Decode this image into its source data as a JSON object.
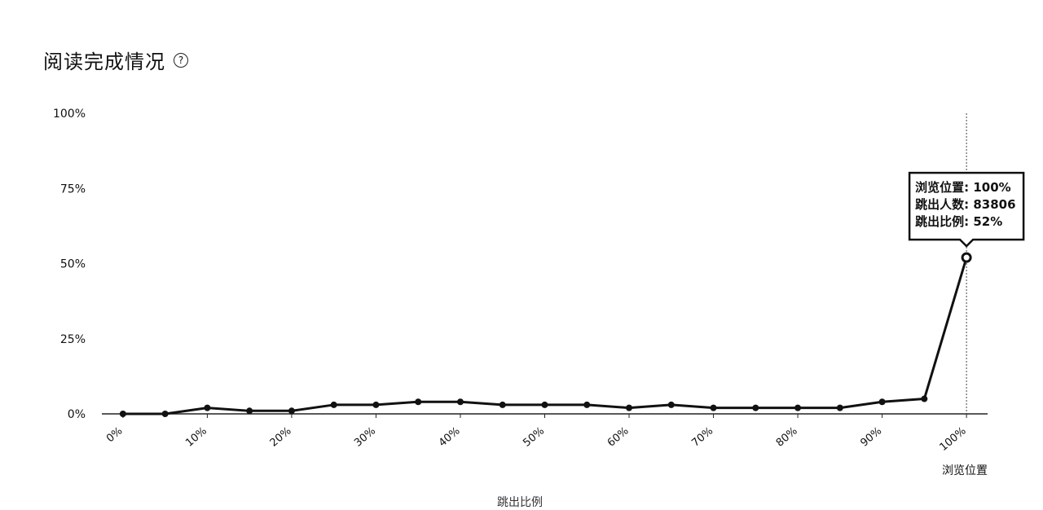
{
  "header": {
    "title": "阅读完成情况",
    "help_icon": "question-circle-icon",
    "help_glyph": "?"
  },
  "chart_data": {
    "type": "line",
    "xlabel": "浏览位置",
    "ylim": [
      0,
      100
    ],
    "y_ticks": [
      "0%",
      "25%",
      "50%",
      "75%",
      "100%"
    ],
    "y_tick_values": [
      0,
      25,
      50,
      75,
      100
    ],
    "x_ticks": [
      "0%",
      "10%",
      "20%",
      "30%",
      "40%",
      "50%",
      "60%",
      "70%",
      "80%",
      "90%",
      "100%"
    ],
    "x_tick_values": [
      0,
      10,
      20,
      30,
      40,
      50,
      60,
      70,
      80,
      90,
      100
    ],
    "xlim": [
      -2.5,
      102.5
    ],
    "x": [
      0,
      5,
      10,
      15,
      20,
      25,
      30,
      35,
      40,
      45,
      50,
      55,
      60,
      65,
      70,
      75,
      80,
      85,
      90,
      95,
      100
    ],
    "values": [
      0,
      0,
      2,
      1,
      1,
      3,
      3,
      4,
      4,
      3,
      3,
      3,
      2,
      3,
      2,
      2,
      2,
      2,
      4,
      5,
      52
    ],
    "line_color": "#111111",
    "tooltip": {
      "x": 100,
      "lines": [
        "浏览位置: 100%",
        "跳出人数: 83806",
        "跳出比例: 52%"
      ]
    },
    "legend": {
      "label": "跳出比例",
      "placement": "bottom"
    }
  }
}
